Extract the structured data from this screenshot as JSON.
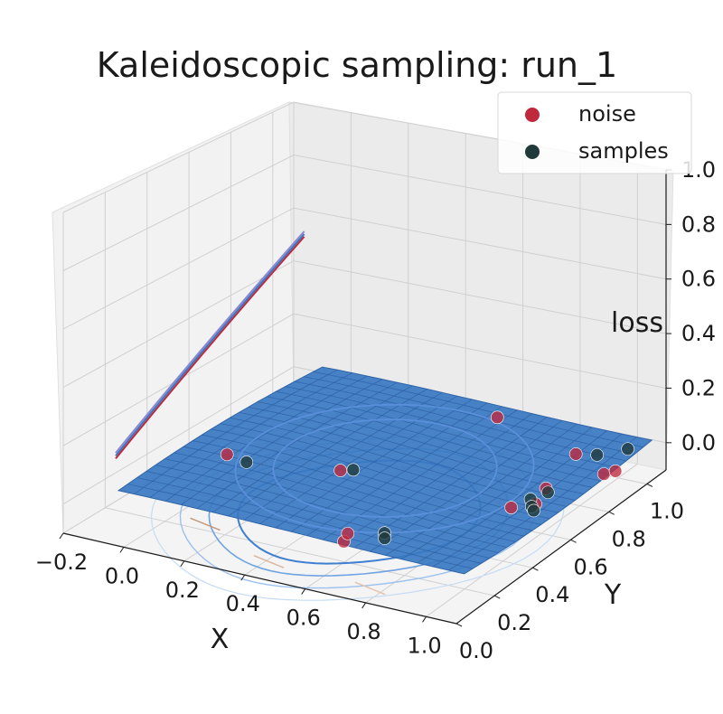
{
  "chart_data": {
    "type": "scatter",
    "title": "Kaleidoscopic sampling: run_1",
    "xlabel": "X",
    "ylabel": "Y",
    "zlabel": "loss",
    "xlim": [
      -0.2,
      1.1
    ],
    "ylim": [
      0.0,
      1.1
    ],
    "zlim": [
      -0.1,
      1.0
    ],
    "x_ticks": [
      "−0.2",
      "0.0",
      "0.2",
      "0.4",
      "0.6",
      "0.8",
      "1.0"
    ],
    "y_ticks": [
      "0.0",
      "0.2",
      "0.4",
      "0.6",
      "0.8",
      "1.0"
    ],
    "z_ticks": [
      "0.0",
      "0.2",
      "0.4",
      "0.6",
      "0.8",
      "1.0"
    ],
    "grid": true,
    "legend_position": "top-right",
    "series": [
      {
        "name": "noise",
        "color": "#c0283c",
        "points": [
          {
            "x": 0.0,
            "y": 0.5,
            "z": 0.0
          },
          {
            "x": 0.35,
            "y": 0.55,
            "z": 0.0
          },
          {
            "x": 0.63,
            "y": 0.15,
            "z": 0.0
          },
          {
            "x": 0.61,
            "y": 0.2,
            "z": 0.0
          },
          {
            "x": 0.58,
            "y": 1.0,
            "z": 0.03
          },
          {
            "x": 0.9,
            "y": 0.93,
            "z": 0.0
          },
          {
            "x": 0.93,
            "y": 0.55,
            "z": 0.0
          },
          {
            "x": 0.98,
            "y": 0.6,
            "z": 0.0
          },
          {
            "x": 0.95,
            "y": 0.7,
            "z": 0.0
          },
          {
            "x": 1.05,
            "y": 0.85,
            "z": 0.0
          },
          {
            "x": 1.07,
            "y": 0.88,
            "z": 0.0
          }
        ]
      },
      {
        "name": "samples",
        "color": "#203a3a",
        "points": [
          {
            "x": 0.08,
            "y": 0.48,
            "z": 0.0
          },
          {
            "x": 0.38,
            "y": 0.57,
            "z": 0.0
          },
          {
            "x": 0.7,
            "y": 0.25,
            "z": 0.0
          },
          {
            "x": 0.72,
            "y": 0.22,
            "z": 0.0
          },
          {
            "x": 0.95,
            "y": 0.62,
            "z": 0.0
          },
          {
            "x": 0.97,
            "y": 0.68,
            "z": 0.0
          },
          {
            "x": 0.98,
            "y": 0.58,
            "z": 0.0
          },
          {
            "x": 1.0,
            "y": 0.56,
            "z": 0.0
          },
          {
            "x": 0.96,
            "y": 0.95,
            "z": 0.0
          },
          {
            "x": 1.02,
            "y": 1.02,
            "z": 0.0
          }
        ]
      }
    ],
    "surface": {
      "type": "surface",
      "color": "#3a78c2"
    }
  }
}
